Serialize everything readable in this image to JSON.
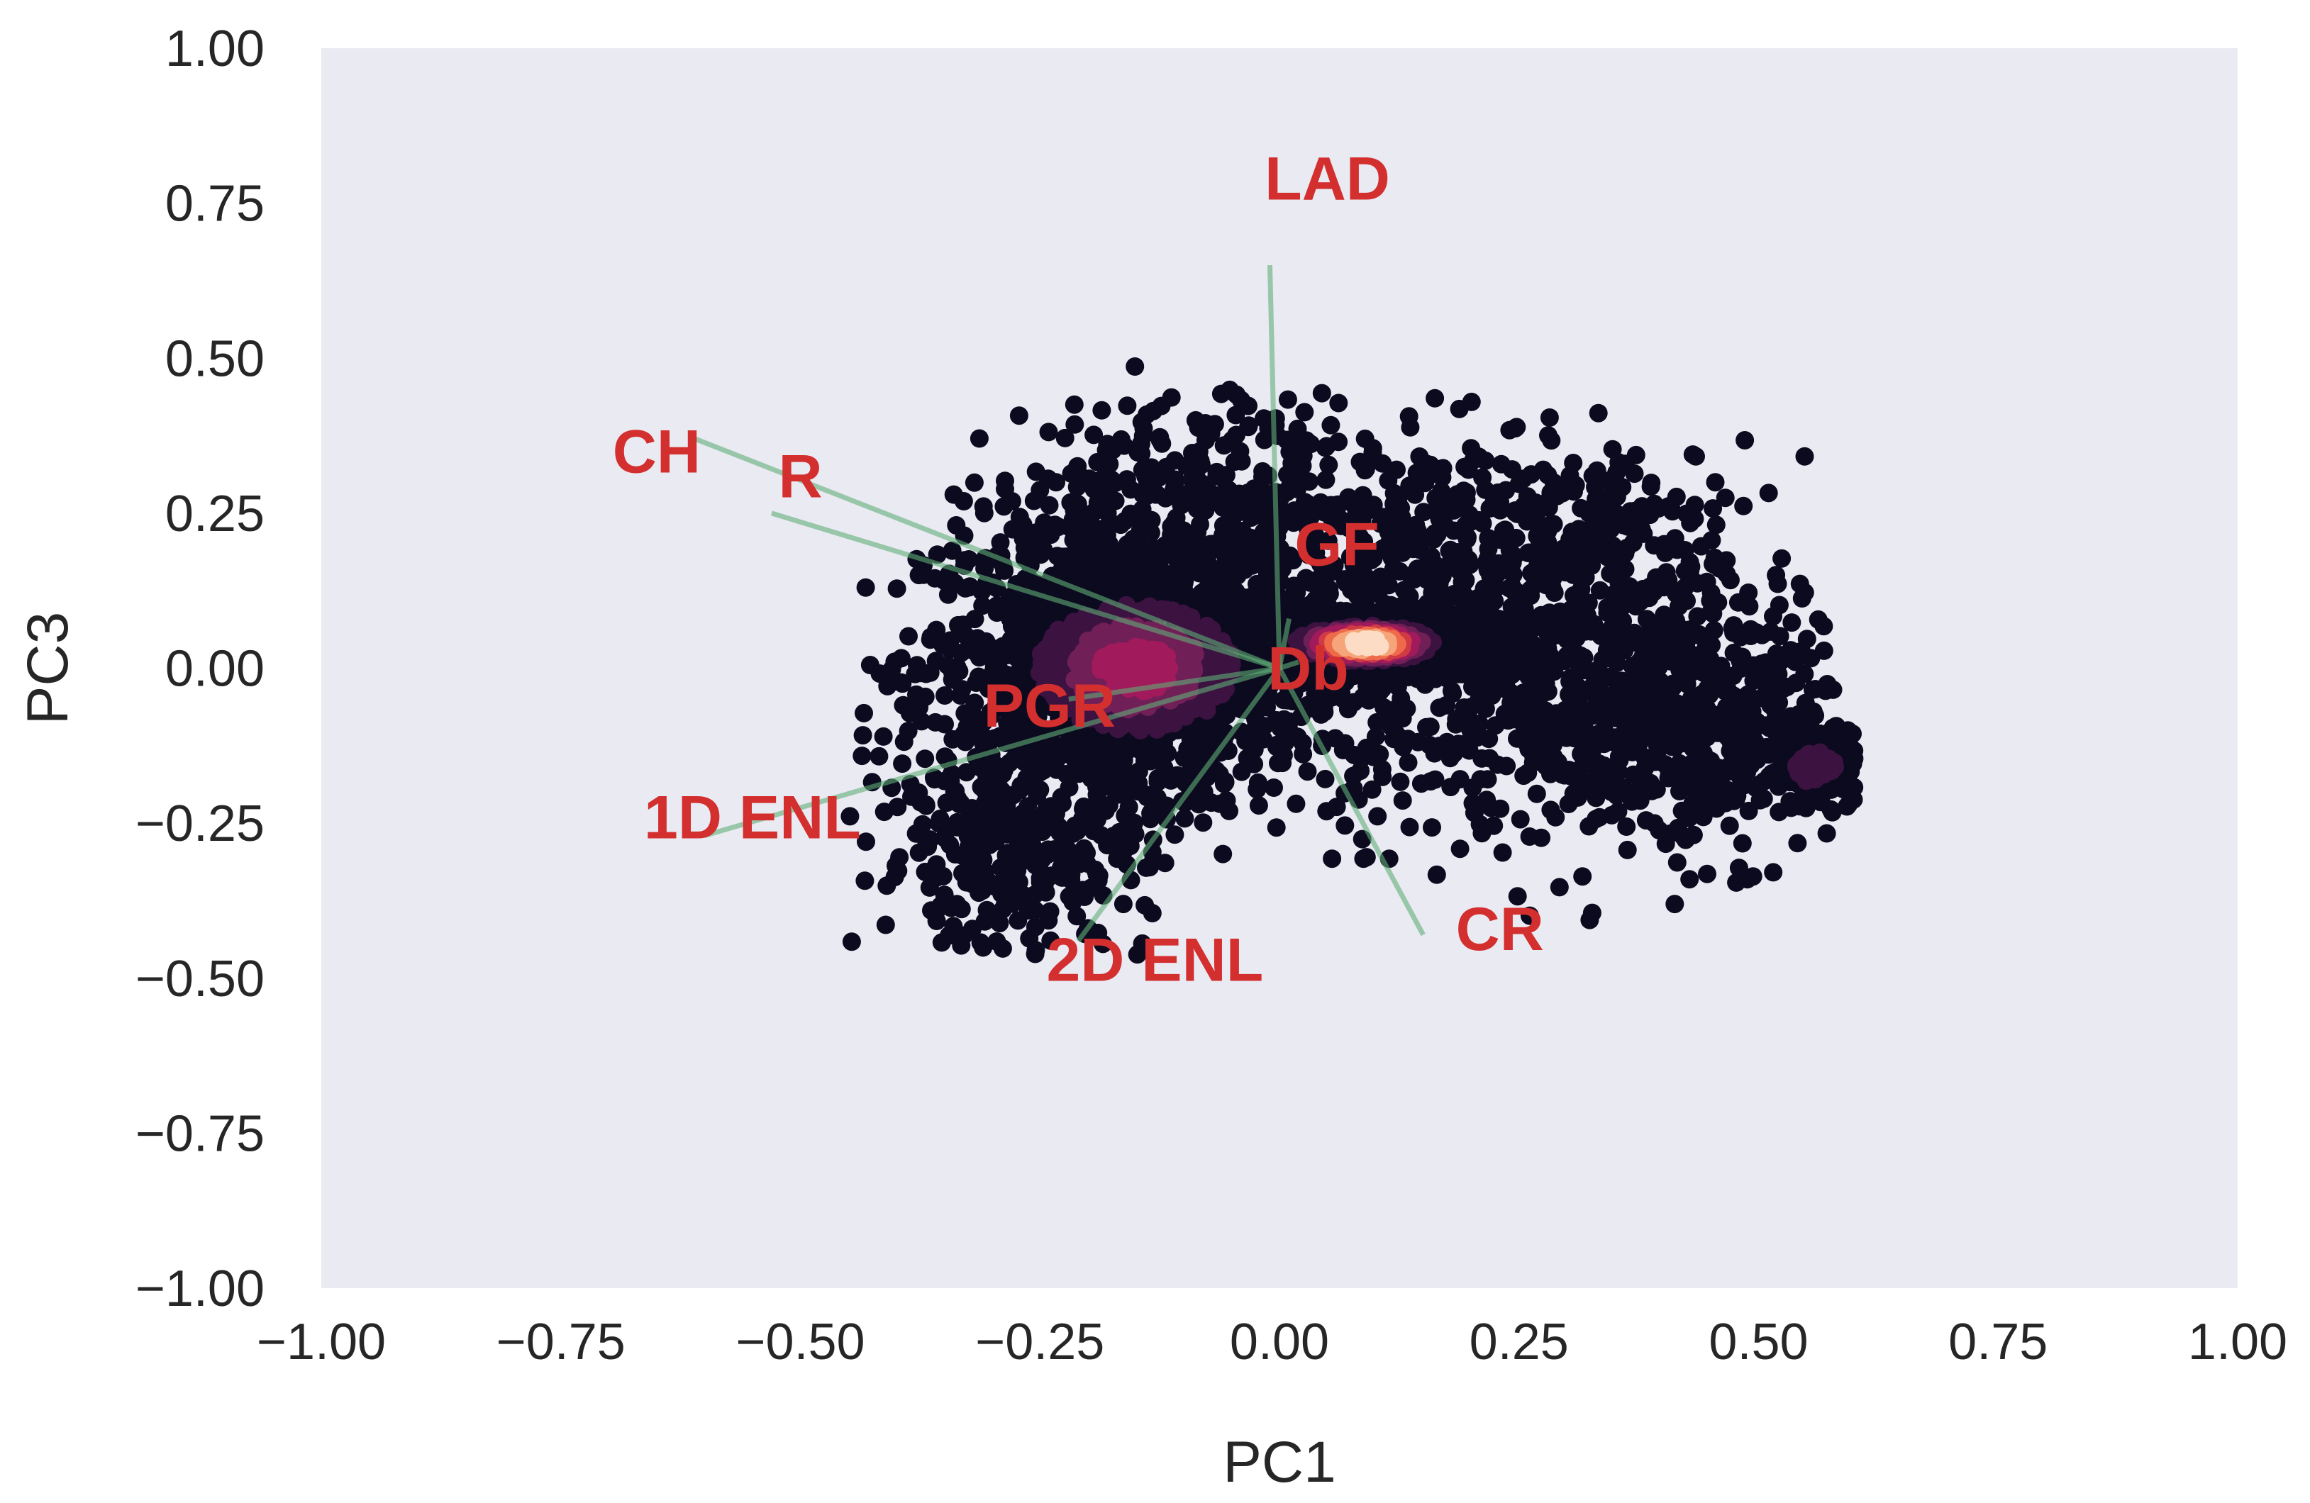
{
  "chart_data": {
    "type": "scatter",
    "title": "",
    "xlabel": "PC1",
    "ylabel": "PC3",
    "xlim": [
      -1.0,
      1.0
    ],
    "ylim": [
      -1.0,
      1.0
    ],
    "grid": false,
    "background_color": "#eaeaf2",
    "xticks": [
      "−1.00",
      "−0.75",
      "−0.50",
      "−0.25",
      "0.00",
      "0.25",
      "0.50",
      "0.75",
      "1.00"
    ],
    "yticks": [
      "1.00",
      "0.75",
      "0.50",
      "0.25",
      "0.00",
      "−0.25",
      "−0.50",
      "−0.75",
      "−1.00"
    ],
    "colormap": [
      "#0b0a1f",
      "#3b1240",
      "#701f57",
      "#a11a5b",
      "#d03a45",
      "#ee6a4a",
      "#f6a47a",
      "#fcdcc4",
      "#ffffff"
    ],
    "scatter_density_description": "Dense point cloud centered near PC1≈-0.15..0.15, PC3≈-0.05..0.05, spreading right to PC1≈0.6",
    "loadings": [
      {
        "label": "LAD",
        "x": -0.01,
        "y": 0.65,
        "label_x": 0.05,
        "label_y": 0.79
      },
      {
        "label": "CH",
        "x": -0.61,
        "y": 0.37,
        "label_x": -0.65,
        "label_y": 0.35
      },
      {
        "label": "R",
        "x": -0.53,
        "y": 0.25,
        "label_x": -0.5,
        "label_y": 0.31
      },
      {
        "label": "GF",
        "x": 0.01,
        "y": 0.08,
        "label_x": 0.06,
        "label_y": 0.2
      },
      {
        "label": "Db",
        "x": 0.02,
        "y": 0.01,
        "label_x": 0.03,
        "label_y": 0.0
      },
      {
        "label": "PGR",
        "x": -0.22,
        "y": -0.05,
        "label_x": -0.24,
        "label_y": -0.06
      },
      {
        "label": "1D ENL",
        "x": -0.6,
        "y": -0.27,
        "label_x": -0.55,
        "label_y": -0.24
      },
      {
        "label": "2D ENL",
        "x": -0.21,
        "y": -0.44,
        "label_x": -0.13,
        "label_y": -0.47
      },
      {
        "label": "CR",
        "x": 0.15,
        "y": -0.43,
        "label_x": 0.23,
        "label_y": -0.42
      }
    ],
    "arrow_color": "#5fae77"
  }
}
